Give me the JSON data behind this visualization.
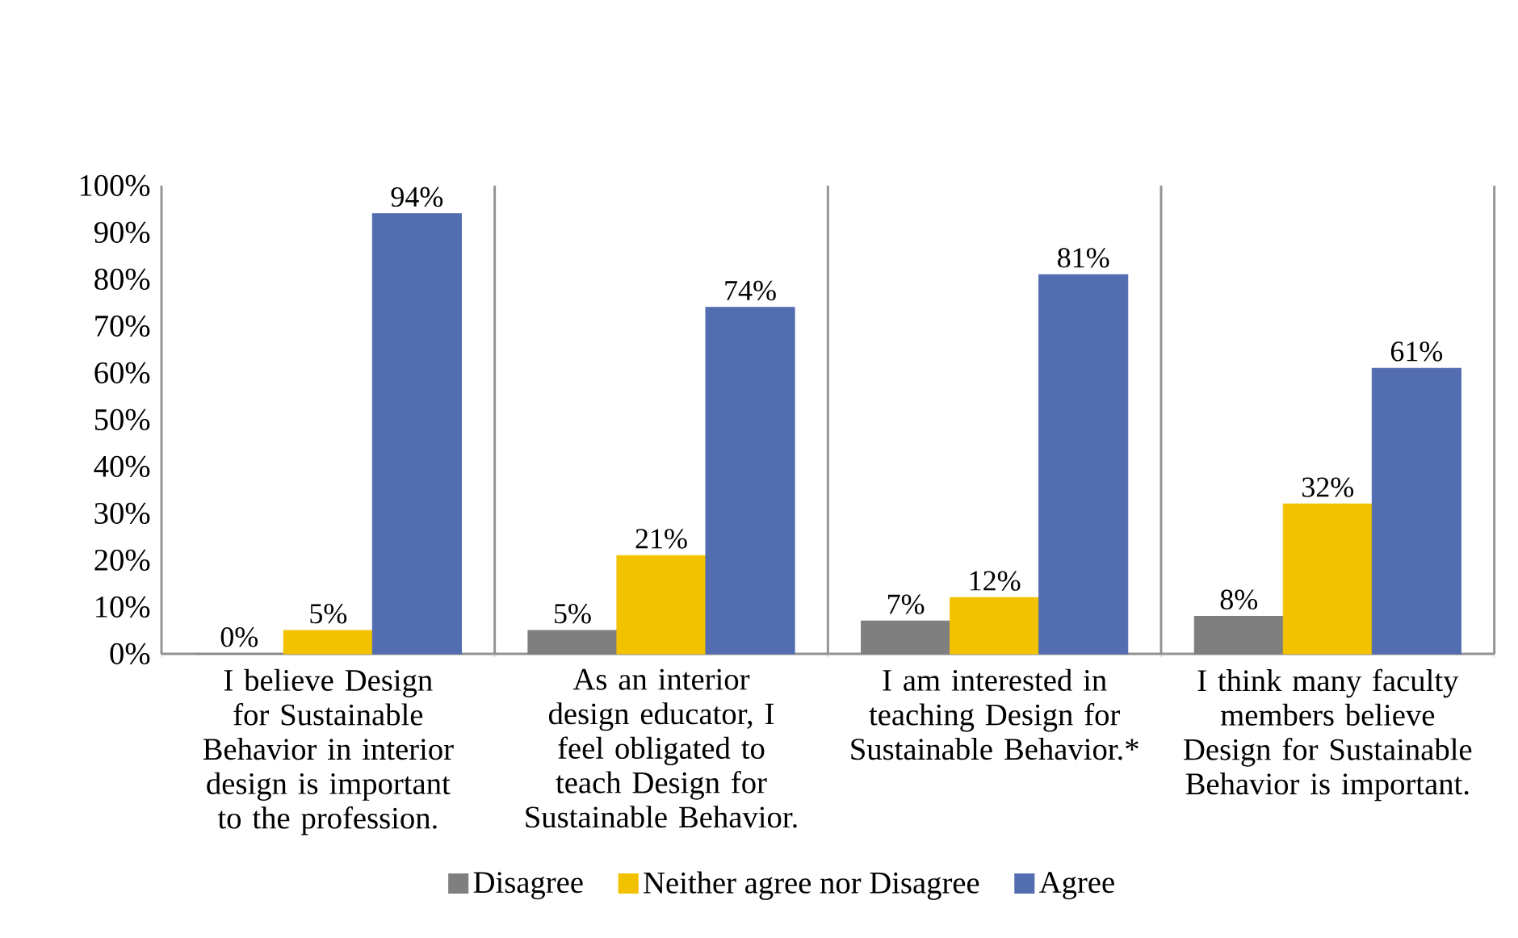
{
  "chart_data": {
    "type": "bar",
    "categories": [
      "I believe Design for Sustainable Behavior in interior design is important to the profession.",
      "As an interior design educator, I feel obligated to teach Design for Sustainable Behavior.",
      "I am interested in teaching Design for Sustainable Behavior.*",
      "I think many faculty members believe Design for Sustainable Behavior is important."
    ],
    "series": [
      {
        "name": "Disagree",
        "color": "#7f7f7f",
        "values": [
          0,
          5,
          7,
          8
        ],
        "value_labels": [
          "0%",
          "5%",
          "7%",
          "8%"
        ]
      },
      {
        "name": "Neither agree nor Disagree",
        "color": "#f2c200",
        "values": [
          5,
          21,
          12,
          32
        ],
        "value_labels": [
          "5%",
          "21%",
          "12%",
          "32%"
        ]
      },
      {
        "name": "Agree",
        "color": "#526db0",
        "values": [
          94,
          74,
          81,
          61
        ],
        "value_labels": [
          "94%",
          "74%",
          "81%",
          "61%"
        ]
      }
    ],
    "ylim": [
      0,
      100
    ],
    "yticks": [
      {
        "value": 0,
        "label": "0%"
      },
      {
        "value": 10,
        "label": "10%"
      },
      {
        "value": 20,
        "label": "20%"
      },
      {
        "value": 30,
        "label": "30%"
      },
      {
        "value": 40,
        "label": "40%"
      },
      {
        "value": 50,
        "label": "50%"
      },
      {
        "value": 60,
        "label": "60%"
      },
      {
        "value": 70,
        "label": "70%"
      },
      {
        "value": 80,
        "label": "80%"
      },
      {
        "value": 90,
        "label": "90%"
      },
      {
        "value": 100,
        "label": "100%"
      }
    ],
    "grid": "x",
    "legend": "bottom"
  }
}
